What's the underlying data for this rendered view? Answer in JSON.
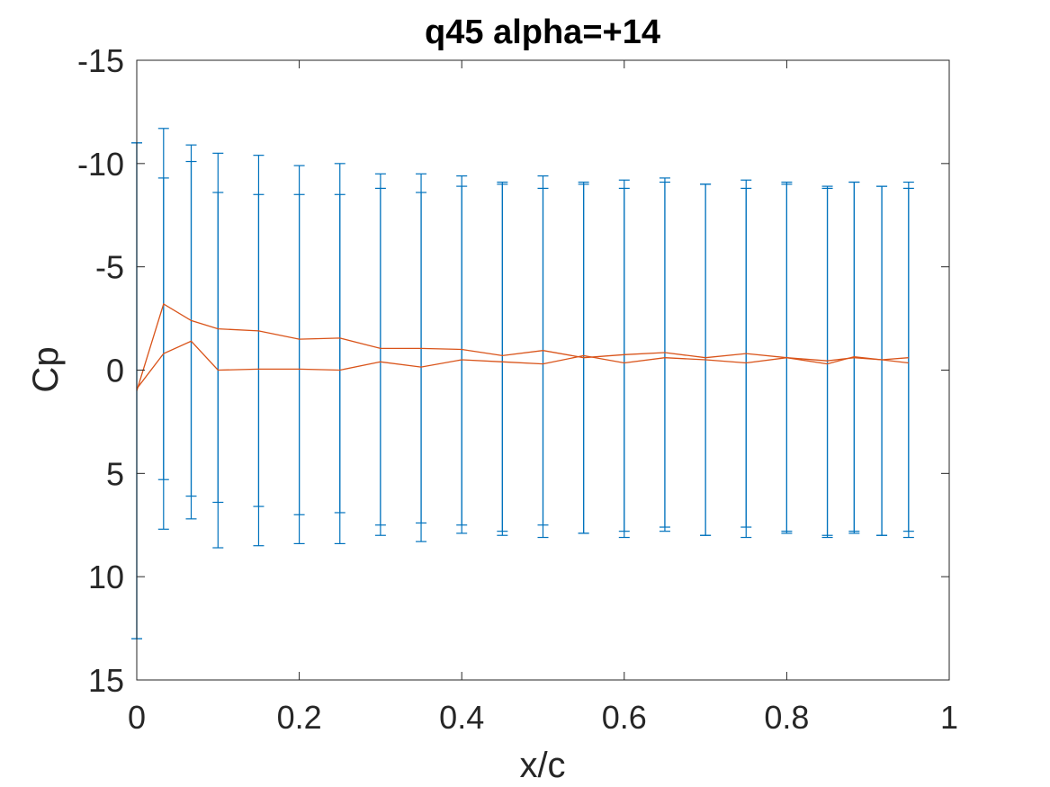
{
  "chart_data": {
    "type": "line",
    "title": "q45 alpha=+14",
    "xlabel": "x/c",
    "ylabel": "Cp",
    "xlim": [
      0,
      1
    ],
    "ylim": [
      -15,
      15
    ],
    "y_reversed": true,
    "grid": false,
    "legend": "none",
    "x_ticks": [
      0,
      0.2,
      0.4,
      0.6,
      0.8,
      1
    ],
    "x_tick_labels": [
      "0",
      "0.2",
      "0.4",
      "0.6",
      "0.8",
      "1"
    ],
    "y_ticks": [
      -15,
      -10,
      -5,
      0,
      5,
      10,
      15
    ],
    "y_tick_labels": [
      "-15",
      "-10",
      "-5",
      "0",
      "5",
      "10",
      "15"
    ],
    "colors": {
      "errorbar": "#0072BD",
      "line": "#D95319",
      "axes": "#262626"
    },
    "series": [
      {
        "x": [
          0,
          0.033,
          0.067,
          0.1,
          0.15,
          0.2,
          0.25,
          0.3,
          0.35,
          0.4,
          0.45,
          0.5,
          0.55,
          0.6,
          0.65,
          0.7,
          0.75,
          0.8,
          0.85,
          0.883,
          0.917,
          0.95
        ],
        "y": [
          1.0,
          -3.2,
          -2.4,
          -2.0,
          -1.9,
          -1.5,
          -1.55,
          -1.05,
          -1.05,
          -1.0,
          -0.7,
          -0.95,
          -0.6,
          -0.75,
          -0.85,
          -0.6,
          -0.8,
          -0.6,
          -0.45,
          -0.6,
          -0.5,
          -0.6
        ],
        "err_low": [
          -11.0,
          -11.7,
          -10.9,
          -10.5,
          -10.4,
          -9.9,
          -10.0,
          -9.5,
          -9.5,
          -9.4,
          -9.1,
          -9.4,
          -9.0,
          -9.2,
          -9.3,
          -9.0,
          -9.2,
          -9.0,
          -8.9,
          -9.1,
          -8.9,
          -9.1
        ],
        "err_high": [
          13.0,
          7.7,
          7.2,
          8.6,
          8.5,
          8.4,
          8.4,
          8.0,
          8.3,
          7.9,
          8.0,
          8.1,
          7.9,
          8.1,
          7.8,
          8.0,
          8.1,
          7.9,
          8.1,
          7.9,
          8.0,
          8.1
        ]
      },
      {
        "x": [
          0,
          0.033,
          0.067,
          0.1,
          0.15,
          0.2,
          0.25,
          0.3,
          0.35,
          0.4,
          0.45,
          0.5,
          0.55,
          0.6,
          0.65,
          0.7,
          0.75,
          0.8,
          0.85,
          0.883,
          0.917,
          0.95
        ],
        "y": [
          0.9,
          -0.8,
          -1.4,
          0.0,
          -0.05,
          -0.05,
          0.0,
          -0.4,
          -0.15,
          -0.5,
          -0.4,
          -0.3,
          -0.7,
          -0.35,
          -0.6,
          -0.5,
          -0.35,
          -0.6,
          -0.3,
          -0.65,
          -0.5,
          -0.35
        ],
        "err_low": [
          -11.0,
          -9.3,
          -10.1,
          -8.6,
          -8.5,
          -8.5,
          -8.5,
          -8.8,
          -8.6,
          -8.9,
          -9.0,
          -8.8,
          -9.1,
          -8.8,
          -9.1,
          -9.0,
          -8.8,
          -9.1,
          -8.8,
          -9.1,
          -8.9,
          -8.8
        ],
        "err_high": [
          13.0,
          5.3,
          6.1,
          6.4,
          6.6,
          7.0,
          6.9,
          7.5,
          7.4,
          7.5,
          7.8,
          7.5,
          7.9,
          7.8,
          7.6,
          8.0,
          7.6,
          7.8,
          8.0,
          7.8,
          8.0,
          7.8
        ]
      }
    ]
  }
}
